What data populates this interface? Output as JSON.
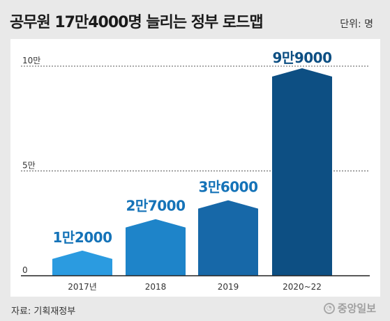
{
  "header": {
    "title": "공무원 17만4000명 늘리는 정부 로드맵",
    "unit": "단위: 명"
  },
  "footer": {
    "source": "자료: 기획재정부",
    "logo_text": "중앙일보"
  },
  "colors": {
    "background": "#e9e9e9",
    "panel": "#ffffff",
    "label": "#1573b8",
    "label_last": "#ffffff",
    "bars": [
      "#2b9be0",
      "#1e84c9",
      "#1768a8",
      "#0d4f83"
    ]
  },
  "chart_data": {
    "type": "bar",
    "categories": [
      "2017년",
      "2018",
      "2019",
      "2020~22"
    ],
    "values": [
      12000,
      27000,
      36000,
      99000
    ],
    "value_labels": [
      "1만2000",
      "2만7000",
      "3만6000",
      "9만9000"
    ],
    "y_ticks": [
      0,
      50000,
      100000
    ],
    "y_tick_labels": [
      "0",
      "5만",
      "10만"
    ],
    "ylim": [
      0,
      100000
    ],
    "grid": "dashed at 5만 and 10만"
  }
}
